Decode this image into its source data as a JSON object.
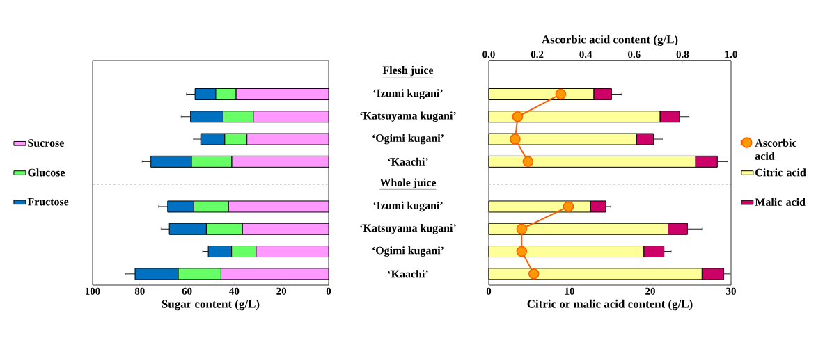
{
  "chart_data": [
    {
      "type": "bar",
      "orientation": "horizontal",
      "stacked": true,
      "xlabel": "Sugar content (g/L)",
      "categories": [
        "Flesh juice",
        "‘Izumi kugani’",
        "‘Katsuyama kugani’",
        "‘Ogimi kugani’",
        "‘Kaachi’",
        "Whole juice",
        "‘Izumi kugani’",
        "‘Katsuyama kugani’",
        "‘Ogimi kugani’",
        "‘Kaachi’"
      ],
      "series": [
        {
          "name": "Sucrose",
          "color": "#ff99ff",
          "values": [
            null,
            39.2,
            31.9,
            34.6,
            41.0,
            null,
            42.4,
            36.5,
            30.7,
            45.6
          ]
        },
        {
          "name": "Glucose",
          "color": "#66ff66",
          "values": [
            null,
            8.6,
            12.8,
            9.4,
            17.1,
            null,
            14.7,
            15.3,
            10.4,
            18.1
          ]
        },
        {
          "name": "Fructose",
          "color": "#0070c0",
          "values": [
            null,
            8.8,
            13.8,
            10.2,
            17.2,
            null,
            11.1,
            15.7,
            9.9,
            18.3
          ],
          "errors": [
            null,
            3.7,
            4.0,
            3.1,
            3.7,
            null,
            3.9,
            3.5,
            2.4,
            4.0
          ]
        }
      ],
      "xlim": [
        100,
        0
      ],
      "xticks": [
        100,
        80,
        60,
        40,
        20,
        0
      ],
      "ref_lines": [
        {
          "axis": "y",
          "value": "Whole juice",
          "line_style": "dashed"
        }
      ],
      "legend": "left"
    },
    {
      "type": "bar",
      "orientation": "horizontal",
      "stacked": true,
      "xlabel": "Citric or malic acid content (g/L)",
      "x2label": "Ascorbic acid content (g/L)",
      "categories": [
        "Flesh juice",
        "‘Izumi kugani’",
        "‘Katsuyama kugani’",
        "‘Ogimi kugani’",
        "‘Kaachi’",
        "Whole juice",
        "‘Izumi kugani’",
        "‘Katsuyama kugani’",
        "‘Ogimi kugani’",
        "‘Kaachi’"
      ],
      "series": [
        {
          "name": "Ascorbic acid",
          "type": "line",
          "axis": "x2",
          "color": "#ff9900",
          "values": [
            null,
            0.297,
            0.119,
            0.109,
            0.162,
            null,
            0.329,
            0.136,
            0.136,
            0.186
          ]
        },
        {
          "name": "Citric acid",
          "color": "#ffff99",
          "values": [
            null,
            13.0,
            21.2,
            18.3,
            25.6,
            null,
            12.6,
            22.2,
            19.2,
            26.4
          ]
        },
        {
          "name": "Malic acid",
          "color": "#cc0066",
          "values": [
            null,
            2.2,
            2.4,
            2.1,
            2.7,
            null,
            1.9,
            2.4,
            2.5,
            2.7
          ],
          "errors": [
            null,
            1.25,
            1.2,
            1.1,
            1.3,
            null,
            0.6,
            1.8,
            0.9,
            0.8
          ]
        }
      ],
      "xlim": [
        0,
        30
      ],
      "xticks": [
        0,
        10,
        20,
        30
      ],
      "x2lim": [
        0,
        1
      ],
      "x2ticks": [
        {
          "value": 0,
          "label": "0.0"
        },
        {
          "value": 0.2,
          "label": "0.2"
        },
        {
          "value": 0.4,
          "label": "0.4"
        },
        {
          "value": 0.6,
          "label": "0.6"
        },
        {
          "value": 0.8,
          "label": "0.8"
        },
        {
          "value": 1,
          "label": "1.0"
        }
      ],
      "ref_lines": [
        {
          "axis": "y",
          "value": "Whole juice",
          "line_style": "dashed"
        }
      ],
      "marker": "circle",
      "tick_labels": "x",
      "legend": "right"
    }
  ]
}
